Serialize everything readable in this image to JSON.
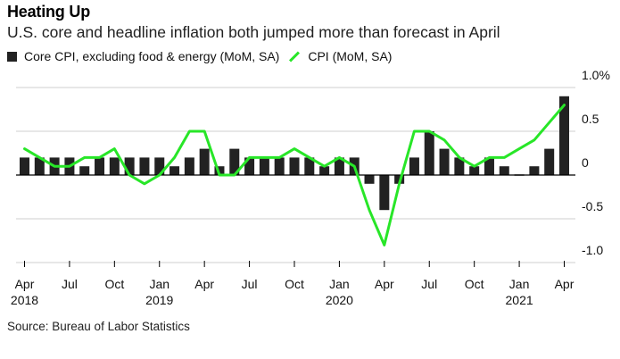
{
  "header": {
    "title": "Heating Up",
    "subtitle": "U.S. core and headline inflation both jumped more than forecast in April"
  },
  "legend": {
    "core_label": "Core CPI, excluding food & energy (MoM, SA)",
    "cpi_label": "CPI (MoM, SA)"
  },
  "source": "Source: Bureau of Labor Statistics",
  "colors": {
    "bar": "#222222",
    "line": "#28e628",
    "grid": "#cfcfcf"
  },
  "chart_data": {
    "type": "bar",
    "title": "Heating Up",
    "subtitle": "U.S. core and headline inflation both jumped more than forecast in April",
    "xlabel": "",
    "ylabel": "",
    "ylim": [
      -1.0,
      1.0
    ],
    "y_ticks": [
      "1.0%",
      "0.5",
      "0",
      "-0.5",
      "-1.0"
    ],
    "y_tick_values": [
      1.0,
      0.5,
      0,
      -0.5,
      -1.0
    ],
    "x_tick_labels": [
      {
        "index": 0,
        "month": "Apr",
        "year": "2018"
      },
      {
        "index": 3,
        "month": "Jul",
        "year": ""
      },
      {
        "index": 6,
        "month": "Oct",
        "year": ""
      },
      {
        "index": 9,
        "month": "Jan",
        "year": "2019"
      },
      {
        "index": 12,
        "month": "Apr",
        "year": ""
      },
      {
        "index": 15,
        "month": "Jul",
        "year": ""
      },
      {
        "index": 18,
        "month": "Oct",
        "year": ""
      },
      {
        "index": 21,
        "month": "Jan",
        "year": "2020"
      },
      {
        "index": 24,
        "month": "Apr",
        "year": ""
      },
      {
        "index": 27,
        "month": "Jul",
        "year": ""
      },
      {
        "index": 30,
        "month": "Oct",
        "year": ""
      },
      {
        "index": 33,
        "month": "Jan",
        "year": "2021"
      },
      {
        "index": 36,
        "month": "Apr",
        "year": ""
      }
    ],
    "categories": [
      "2018-04",
      "2018-05",
      "2018-06",
      "2018-07",
      "2018-08",
      "2018-09",
      "2018-10",
      "2018-11",
      "2018-12",
      "2019-01",
      "2019-02",
      "2019-03",
      "2019-04",
      "2019-05",
      "2019-06",
      "2019-07",
      "2019-08",
      "2019-09",
      "2019-10",
      "2019-11",
      "2019-12",
      "2020-01",
      "2020-02",
      "2020-03",
      "2020-04",
      "2020-05",
      "2020-06",
      "2020-07",
      "2020-08",
      "2020-09",
      "2020-10",
      "2020-11",
      "2020-12",
      "2021-01",
      "2021-02",
      "2021-03",
      "2021-04"
    ],
    "series": [
      {
        "name": "Core CPI, excluding food & energy (MoM, SA)",
        "type": "bar",
        "values": [
          0.2,
          0.2,
          0.2,
          0.2,
          0.1,
          0.2,
          0.2,
          0.2,
          0.2,
          0.2,
          0.1,
          0.2,
          0.3,
          0.1,
          0.3,
          0.2,
          0.2,
          0.2,
          0.2,
          0.2,
          0.1,
          0.2,
          0.2,
          -0.1,
          -0.4,
          -0.1,
          0.2,
          0.5,
          0.3,
          0.2,
          0.1,
          0.2,
          0.1,
          0.0,
          0.1,
          0.3,
          0.9
        ]
      },
      {
        "name": "CPI (MoM, SA)",
        "type": "line",
        "values": [
          0.3,
          0.2,
          0.1,
          0.1,
          0.2,
          0.2,
          0.3,
          0.0,
          -0.1,
          0.0,
          0.2,
          0.5,
          0.5,
          0.0,
          0.0,
          0.2,
          0.2,
          0.2,
          0.3,
          0.2,
          0.1,
          0.2,
          0.1,
          -0.4,
          -0.8,
          -0.1,
          0.5,
          0.5,
          0.4,
          0.2,
          0.1,
          0.2,
          0.2,
          0.3,
          0.4,
          0.6,
          0.8
        ]
      }
    ],
    "grid": true,
    "legend_position": "top-left"
  }
}
